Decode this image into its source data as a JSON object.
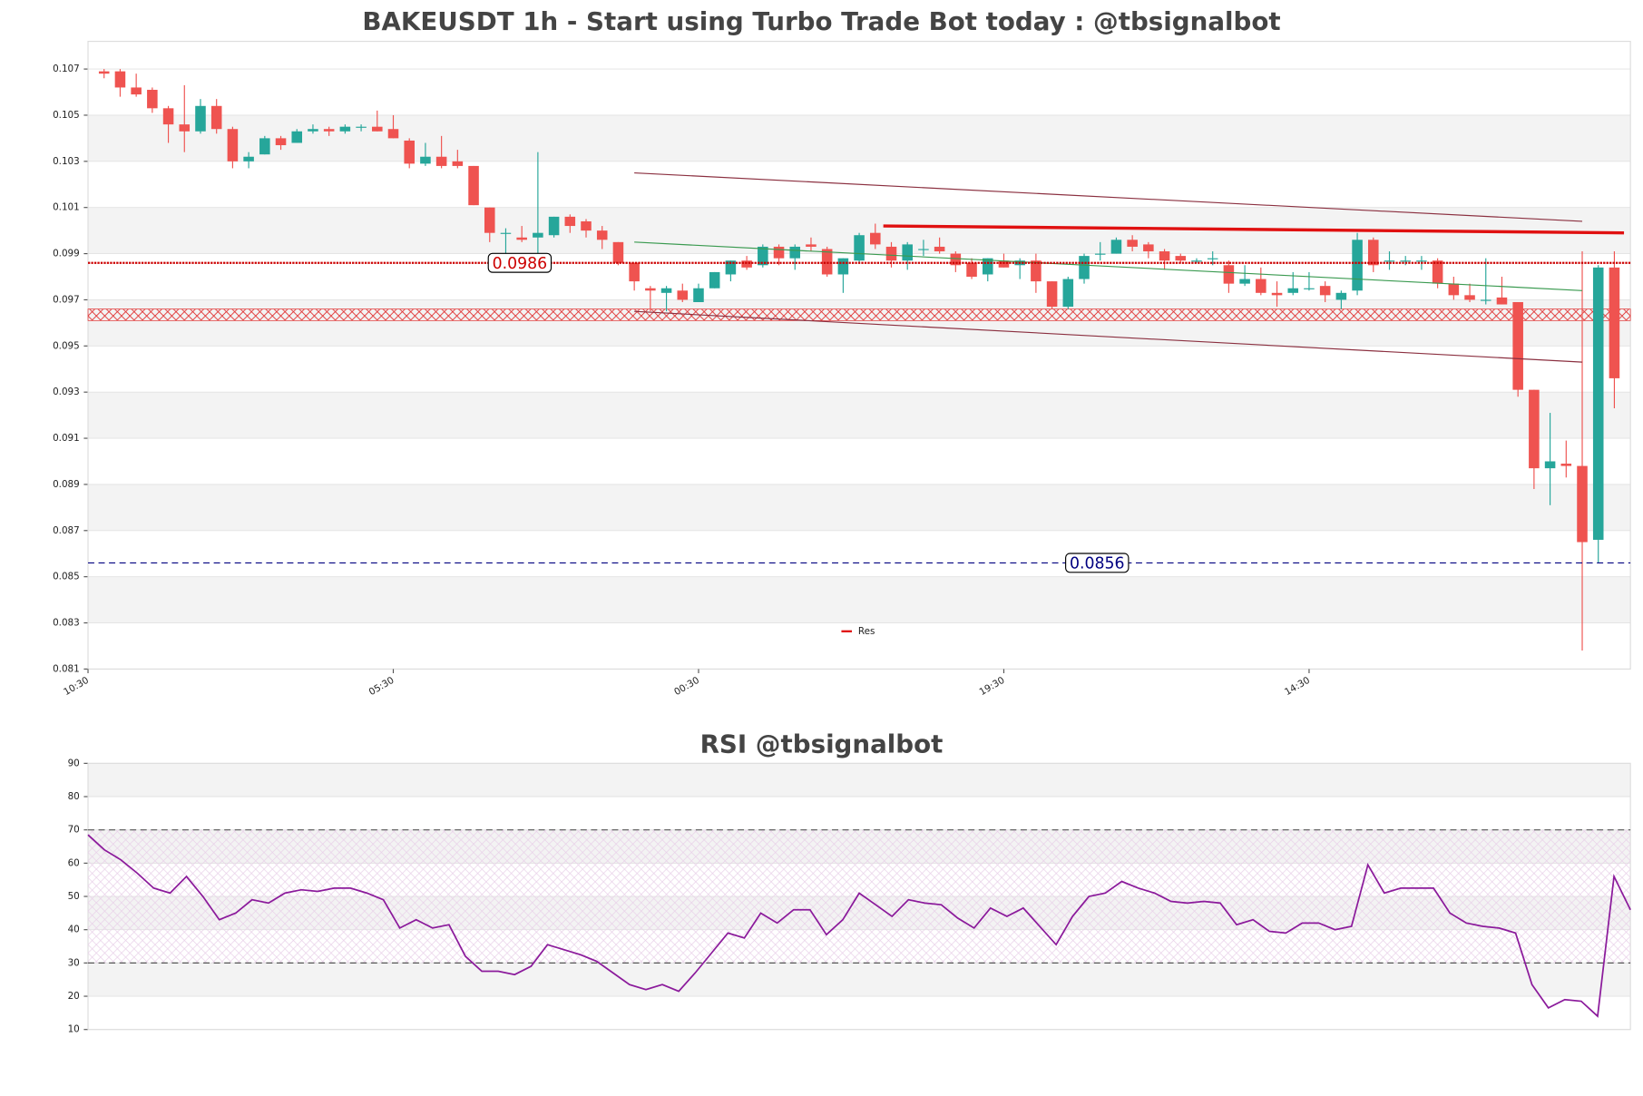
{
  "chart_data": [
    {
      "type": "candlestick",
      "title": "BAKEUSDT 1h - Start using Turbo Trade Bot today : @tbsignalbot",
      "xlim": [
        -1,
        95
      ],
      "xticks": [
        {
          "value": -1,
          "label": "10:30"
        },
        {
          "value": 18,
          "label": "05:30"
        },
        {
          "value": 37,
          "label": "00:30"
        },
        {
          "value": 56,
          "label": "19:30"
        },
        {
          "value": 75,
          "label": "14:30"
        }
      ],
      "ylim": [
        0.081,
        0.1082
      ],
      "yticks": [
        0.081,
        0.083,
        0.085,
        0.087,
        0.089,
        0.091,
        0.093,
        0.095,
        0.097,
        0.099,
        0.101,
        0.103,
        0.105,
        0.107
      ],
      "up_color": "#26a69a",
      "down_color": "#ef5350",
      "open": [
        0.1069,
        0.1069,
        0.1062,
        0.1061,
        0.1053,
        0.1046,
        0.1043,
        0.1054,
        0.1044,
        0.103,
        0.1033,
        0.104,
        0.1038,
        0.1043,
        0.1044,
        0.1043,
        0.1045,
        0.1045,
        0.1044,
        0.1039,
        0.1029,
        0.1032,
        0.103,
        0.1028,
        0.101,
        0.0999,
        0.0997,
        0.0997,
        0.0998,
        0.1006,
        0.1004,
        0.1,
        0.0995,
        0.0986,
        0.0975,
        0.0973,
        0.0974,
        0.0969,
        0.0975,
        0.0981,
        0.0987,
        0.0985,
        0.0993,
        0.0988,
        0.0994,
        0.0992,
        0.0981,
        0.0987,
        0.0999,
        0.0993,
        0.0987,
        0.0992,
        0.0993,
        0.099,
        0.0986,
        0.0981,
        0.0987,
        0.0985,
        0.0987,
        0.0978,
        0.0967,
        0.0979,
        0.099,
        0.099,
        0.0996,
        0.0994,
        0.0991,
        0.0989,
        0.0987,
        0.0988,
        0.0985,
        0.0977,
        0.0979,
        0.0973,
        0.0973,
        0.0975,
        0.0976,
        0.097,
        0.0974,
        0.0996,
        0.0987,
        0.0987,
        0.0987,
        0.0987,
        0.0977,
        0.0972,
        0.097,
        0.0971,
        0.0969,
        0.0931,
        0.0897,
        0.0899,
        0.0898,
        0.0866,
        0.0984
      ],
      "high": [
        0.107,
        0.107,
        0.1068,
        0.1062,
        0.1054,
        0.1063,
        0.1057,
        0.1057,
        0.1045,
        0.1034,
        0.1041,
        0.1041,
        0.1044,
        0.1046,
        0.1045,
        0.1046,
        0.1046,
        0.1052,
        0.105,
        0.104,
        0.1038,
        0.1041,
        0.1035,
        0.1028,
        0.101,
        0.1001,
        0.1002,
        0.1034,
        0.1006,
        0.1007,
        0.1005,
        0.1002,
        0.0995,
        0.0986,
        0.0976,
        0.0976,
        0.0977,
        0.0977,
        0.0982,
        0.0987,
        0.0989,
        0.0994,
        0.0994,
        0.0994,
        0.0997,
        0.0993,
        0.0988,
        0.0999,
        0.1003,
        0.0995,
        0.0995,
        0.0996,
        0.0997,
        0.0991,
        0.0988,
        0.0988,
        0.099,
        0.0988,
        0.099,
        0.0978,
        0.098,
        0.099,
        0.0995,
        0.0997,
        0.0998,
        0.0995,
        0.0992,
        0.099,
        0.0988,
        0.0991,
        0.0987,
        0.0985,
        0.0984,
        0.0978,
        0.0982,
        0.0982,
        0.0978,
        0.0974,
        0.0999,
        0.0997,
        0.0991,
        0.0989,
        0.0989,
        0.0988,
        0.098,
        0.0977,
        0.0988,
        0.098,
        0.0969,
        0.0931,
        0.0921,
        0.0909,
        0.0991,
        0.0985,
        0.0991
      ],
      "low": [
        0.1066,
        0.1058,
        0.1058,
        0.1051,
        0.1038,
        0.1034,
        0.1042,
        0.1042,
        0.1027,
        0.1027,
        0.1033,
        0.1035,
        0.1038,
        0.1042,
        0.1041,
        0.1042,
        0.1043,
        0.1043,
        0.104,
        0.1027,
        0.1028,
        0.1027,
        0.1027,
        0.1011,
        0.0995,
        0.099,
        0.0995,
        0.099,
        0.0997,
        0.0999,
        0.0997,
        0.0992,
        0.0985,
        0.0974,
        0.0965,
        0.0965,
        0.0969,
        0.0969,
        0.0975,
        0.0978,
        0.0983,
        0.0984,
        0.0985,
        0.0983,
        0.0991,
        0.098,
        0.0973,
        0.0986,
        0.0992,
        0.0984,
        0.0983,
        0.0989,
        0.099,
        0.0982,
        0.0979,
        0.0978,
        0.0984,
        0.0979,
        0.0973,
        0.0966,
        0.0966,
        0.0977,
        0.0987,
        0.099,
        0.0991,
        0.0988,
        0.0983,
        0.0986,
        0.0986,
        0.0985,
        0.0973,
        0.0976,
        0.0972,
        0.0967,
        0.0972,
        0.0974,
        0.0969,
        0.0966,
        0.0972,
        0.0982,
        0.0983,
        0.0985,
        0.0983,
        0.0975,
        0.097,
        0.0969,
        0.0968,
        0.0968,
        0.0928,
        0.0888,
        0.0881,
        0.0893,
        0.0818,
        0.0856,
        0.0923
      ],
      "close": [
        0.1068,
        0.1062,
        0.1059,
        0.1053,
        0.1046,
        0.1043,
        0.1054,
        0.1044,
        0.103,
        0.1032,
        0.104,
        0.1037,
        0.1043,
        0.1044,
        0.1043,
        0.1045,
        0.1045,
        0.1043,
        0.104,
        0.1029,
        0.1032,
        0.1028,
        0.1028,
        0.1011,
        0.0999,
        0.0999,
        0.0996,
        0.0999,
        0.1006,
        0.1002,
        0.1,
        0.0996,
        0.0986,
        0.0978,
        0.0974,
        0.0975,
        0.097,
        0.0975,
        0.0982,
        0.0987,
        0.0984,
        0.0993,
        0.0988,
        0.0993,
        0.0993,
        0.0981,
        0.0988,
        0.0998,
        0.0994,
        0.0987,
        0.0994,
        0.0992,
        0.0991,
        0.0985,
        0.098,
        0.0988,
        0.0984,
        0.0987,
        0.0978,
        0.0967,
        0.0979,
        0.0989,
        0.099,
        0.0996,
        0.0993,
        0.0991,
        0.0987,
        0.0987,
        0.0987,
        0.0988,
        0.0977,
        0.0979,
        0.0973,
        0.0972,
        0.0975,
        0.0975,
        0.0972,
        0.0973,
        0.0996,
        0.0985,
        0.0987,
        0.0987,
        0.0987,
        0.0977,
        0.0972,
        0.097,
        0.097,
        0.0968,
        0.0931,
        0.0897,
        0.09,
        0.0898,
        0.0865,
        0.0984,
        0.0936
      ],
      "levels": [
        {
          "value": 0.0986,
          "color": "#cc0000"
        },
        {
          "value": 0.0856,
          "color": "#000080"
        }
      ],
      "zone": {
        "ylim": [
          0.0961,
          0.0966
        ],
        "color": "#e03030"
      },
      "lines": [
        {
          "name": "Res",
          "color": "#e01010",
          "x": [
            48.5,
            94.6
          ],
          "y": [
            0.1002,
            0.0999
          ]
        },
        {
          "color": "#8b3040",
          "x": [
            33,
            92
          ],
          "y": [
            0.1025,
            0.1004
          ]
        },
        {
          "color": "#8b3040",
          "x": [
            33,
            92
          ],
          "y": [
            0.0965,
            0.0943
          ]
        },
        {
          "color": "#3a9a50",
          "x": [
            33,
            92
          ],
          "y": [
            0.0995,
            0.0974
          ]
        }
      ],
      "legend": "lower center"
    },
    {
      "type": "line",
      "title": "RSI @tbsignalbot",
      "color": "#8b1a9b",
      "ylim": [
        10,
        90
      ],
      "yticks": [
        10,
        20,
        30,
        40,
        50,
        60,
        70,
        80,
        90
      ],
      "hlines": [
        30,
        70
      ],
      "values": [
        68.5,
        64,
        61,
        57,
        52.5,
        51,
        56,
        50,
        43,
        45,
        49,
        48,
        51,
        52,
        51.5,
        52.5,
        52.5,
        51,
        49,
        40.5,
        43,
        40.5,
        41.5,
        32,
        27.5,
        27.5,
        26.5,
        29,
        35.5,
        34,
        32.5,
        30.5,
        27,
        23.5,
        22,
        23.5,
        21.5,
        27,
        33,
        39,
        37.5,
        45,
        42,
        46,
        46,
        38.5,
        43,
        51,
        47.5,
        44,
        49,
        48,
        47.5,
        43.5,
        40.5,
        46.5,
        44,
        46.5,
        41,
        35.5,
        44,
        50,
        51,
        54.5,
        52.5,
        51,
        48.5,
        48,
        48.5,
        48,
        41.5,
        43,
        39.5,
        39,
        42,
        42,
        40,
        41,
        59.5,
        51,
        52.5,
        52.5,
        52.5,
        45,
        42,
        41,
        40.5,
        39,
        23.5,
        16.5,
        19,
        18.5,
        14,
        56,
        46
      ]
    }
  ]
}
